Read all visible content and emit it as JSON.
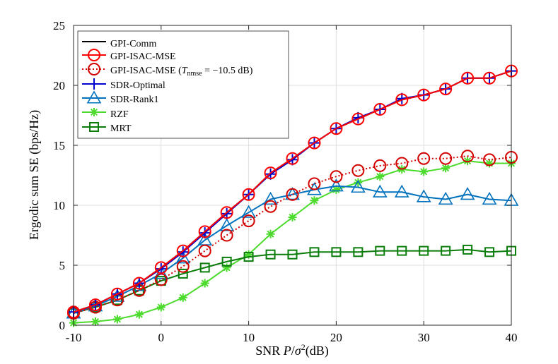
{
  "chart_data": {
    "type": "line",
    "title": "",
    "xlabel": "SNR P/σ²(dB)",
    "xlabel_parts": {
      "prefix": "SNR ",
      "var": "P",
      "slash": "/",
      "sigma": "σ",
      "sup": "2",
      "suffix": "(dB)"
    },
    "ylabel": "Ergodic sum SE (bps/Hz)",
    "xlim": [
      -10,
      40
    ],
    "ylim": [
      0,
      25
    ],
    "xticks": [
      -10,
      0,
      10,
      20,
      30,
      40
    ],
    "yticks": [
      0,
      5,
      10,
      15,
      20,
      25
    ],
    "grid": true,
    "legend_position": "top-left",
    "x": [
      -10,
      -7.5,
      -5,
      -2.5,
      0,
      2.5,
      5,
      7.5,
      10,
      12.5,
      15,
      17.5,
      20,
      22.5,
      25,
      27.5,
      30,
      32.5,
      35,
      37.5,
      40
    ],
    "series": [
      {
        "name": "GPI-Comm",
        "color": "#000000",
        "marker": "none",
        "dash": "solid",
        "values": [
          1.1,
          1.7,
          2.6,
          3.5,
          4.8,
          6.2,
          7.8,
          9.4,
          10.9,
          12.7,
          13.9,
          15.2,
          16.4,
          17.2,
          18.0,
          18.8,
          19.2,
          19.7,
          20.6,
          20.6,
          21.2
        ]
      },
      {
        "name": "GPI-ISAC-MSE",
        "color": "#ff0000",
        "marker": "circle",
        "dash": "solid",
        "values": [
          1.1,
          1.7,
          2.6,
          3.5,
          4.8,
          6.2,
          7.8,
          9.4,
          10.9,
          12.7,
          13.9,
          15.2,
          16.4,
          17.2,
          18.0,
          18.8,
          19.2,
          19.7,
          20.6,
          20.6,
          21.2
        ]
      },
      {
        "name": "GPI-ISAC-MSE (T_nmse = −10.5 dB)",
        "name_parts": {
          "prefix": "GPI-ISAC-MSE (",
          "T": "T",
          "sub": "nmse",
          "eq": " = −10.5 dB)"
        },
        "color": "#d40000",
        "marker": "circle",
        "dash": "dotted",
        "values": [
          1.0,
          1.5,
          2.1,
          2.9,
          3.8,
          4.9,
          6.2,
          7.5,
          8.7,
          9.9,
          10.9,
          11.8,
          12.4,
          12.9,
          13.3,
          13.5,
          13.9,
          13.9,
          14.1,
          13.8,
          14.0
        ]
      },
      {
        "name": "SDR-Optimal",
        "color": "#0000cc",
        "marker": "plus",
        "dash": "solid",
        "values": [
          1.1,
          1.7,
          2.6,
          3.5,
          4.7,
          6.1,
          7.7,
          9.3,
          10.9,
          12.6,
          13.8,
          15.2,
          16.4,
          17.3,
          18.0,
          18.9,
          19.2,
          19.7,
          20.6,
          20.6,
          21.2
        ]
      },
      {
        "name": "SDR-Rank1",
        "color": "#0072bd",
        "marker": "triangle",
        "dash": "solid",
        "values": [
          1.0,
          1.6,
          2.4,
          3.3,
          4.3,
          5.6,
          7.1,
          8.3,
          9.4,
          10.5,
          10.9,
          11.3,
          11.6,
          11.5,
          11.1,
          11.1,
          10.7,
          10.5,
          10.9,
          10.5,
          10.4
        ]
      },
      {
        "name": "RZF",
        "color": "#4cdb2c",
        "marker": "star",
        "dash": "solid",
        "values": [
          0.2,
          0.3,
          0.5,
          0.9,
          1.5,
          2.3,
          3.5,
          4.8,
          5.9,
          7.6,
          9.0,
          10.4,
          11.3,
          11.9,
          12.4,
          13.0,
          12.8,
          13.1,
          13.7,
          13.5,
          13.5
        ]
      },
      {
        "name": "MRT",
        "color": "#0a7d0a",
        "marker": "square",
        "dash": "solid",
        "values": [
          1.0,
          1.5,
          2.1,
          2.9,
          3.7,
          4.3,
          4.8,
          5.3,
          5.7,
          5.9,
          5.9,
          6.1,
          6.1,
          6.1,
          6.2,
          6.2,
          6.2,
          6.2,
          6.3,
          6.1,
          6.2
        ]
      }
    ]
  }
}
